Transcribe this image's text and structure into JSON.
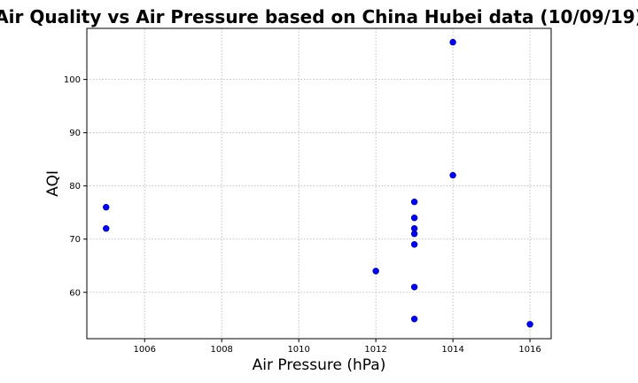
{
  "chart_data": {
    "type": "scatter",
    "title": "Air Quality vs Air Pressure based on China Hubei data (10/09/19)",
    "xlabel": "Air Pressure (hPa)",
    "ylabel": "AQI",
    "xlim": [
      1004.5,
      1016.55
    ],
    "ylim": [
      51.3,
      109.6
    ],
    "xticks": [
      1006,
      1008,
      1010,
      1012,
      1014,
      1016
    ],
    "yticks": [
      60,
      70,
      80,
      90,
      100
    ],
    "grid": true,
    "marker_color": "#0000ff",
    "points": [
      {
        "x": 1005,
        "y": 76
      },
      {
        "x": 1005,
        "y": 72
      },
      {
        "x": 1012,
        "y": 64
      },
      {
        "x": 1013,
        "y": 77
      },
      {
        "x": 1013,
        "y": 74
      },
      {
        "x": 1013,
        "y": 72
      },
      {
        "x": 1013,
        "y": 71
      },
      {
        "x": 1013,
        "y": 69
      },
      {
        "x": 1013,
        "y": 61
      },
      {
        "x": 1013,
        "y": 55
      },
      {
        "x": 1014,
        "y": 107
      },
      {
        "x": 1014,
        "y": 82
      },
      {
        "x": 1016,
        "y": 54
      }
    ]
  }
}
